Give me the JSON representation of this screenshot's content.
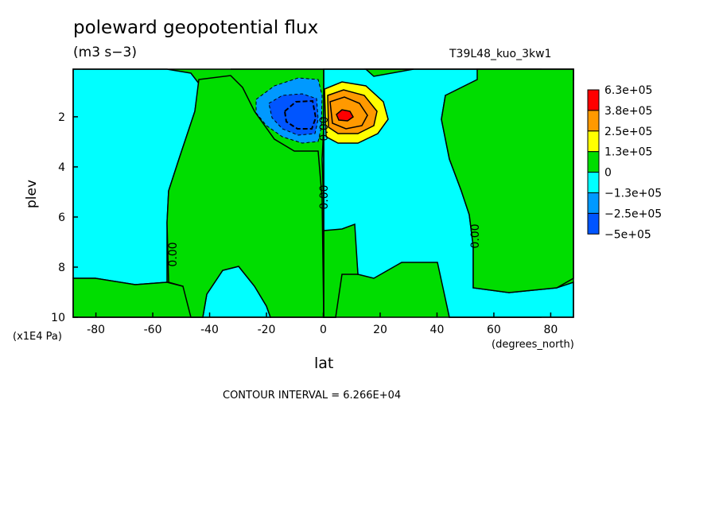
{
  "title": "poleward geopotential flux",
  "units": "(m3 s−3)",
  "run_id": "T39L48_kuo_3kw1",
  "footer": "CONTOUR INTERVAL = 6.266E+04",
  "chart_data": {
    "type": "heatmap",
    "xlabel": "lat",
    "ylabel": "plev",
    "x_units": "(degrees_north)",
    "y_units": "(x1E4 Pa)",
    "xlim": [
      -88,
      88
    ],
    "ylim": [
      10,
      0.1
    ],
    "x_ticks": [
      "-80",
      "-60",
      "-40",
      "-20",
      "0",
      "20",
      "40",
      "60",
      "80"
    ],
    "y_ticks": [
      "2",
      "4",
      "6",
      "8",
      "10"
    ],
    "contour_labels": [
      "0.00",
      "0.00",
      "0.00",
      "0.00"
    ],
    "legend": [
      {
        "label": "6.3e+05",
        "color": "#ff0000"
      },
      {
        "label": "3.8e+05",
        "color": "#ff9900"
      },
      {
        "label": "2.5e+05",
        "color": "#ffff00"
      },
      {
        "label": "1.3e+05",
        "color": "#00dd00"
      },
      {
        "label": "0",
        "color": "#00ffff"
      },
      {
        "label": "−1.3e+05",
        "color": "#0099ff"
      },
      {
        "label": "−2.5e+05",
        "color": "#0055ff"
      },
      {
        "label": "−5e+05",
        "color": ""
      }
    ]
  }
}
